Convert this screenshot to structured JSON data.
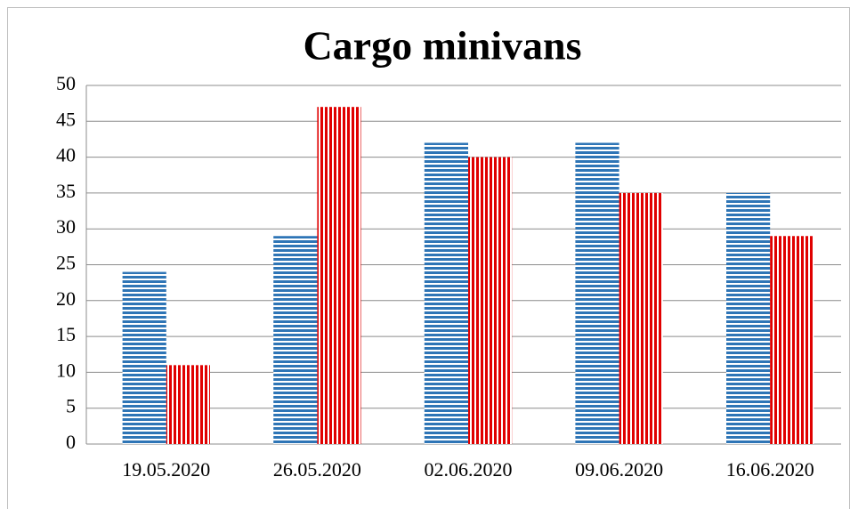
{
  "chart_data": {
    "type": "bar",
    "title": "Cargo minivans",
    "categories": [
      "19.05.2020",
      "26.05.2020",
      "02.06.2020",
      "09.06.2020",
      "16.06.2020"
    ],
    "series": [
      {
        "color": "#2e75b6",
        "pattern": "horizontal",
        "values": [
          24,
          29,
          42,
          42,
          35
        ]
      },
      {
        "color": "#e00000",
        "pattern": "vertical",
        "values": [
          11,
          47,
          40,
          35,
          29
        ]
      }
    ],
    "ylim": [
      0,
      50
    ],
    "yticks": [
      0,
      5,
      10,
      15,
      20,
      25,
      30,
      35,
      40,
      45,
      50
    ],
    "grid": true
  }
}
